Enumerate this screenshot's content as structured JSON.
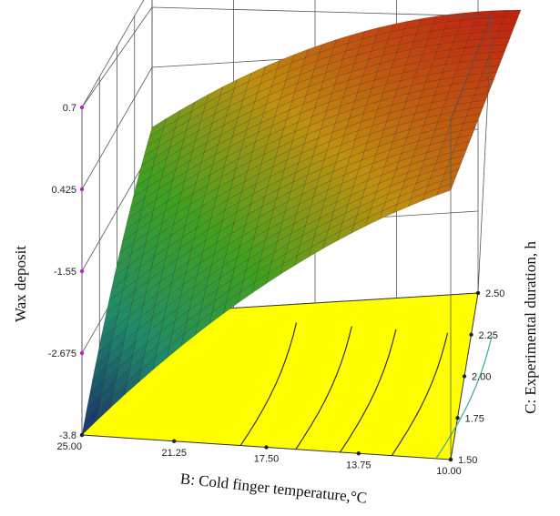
{
  "chart_data": {
    "type": "surface",
    "title": "",
    "zlabel": "Wax deposit",
    "xlabel": "B: Cold finger  temperature,°C",
    "ylabel": "C: Experimental  duration,  h",
    "x_ticks": [
      "25.00",
      "21.25",
      "17.50",
      "13.75",
      "10.00"
    ],
    "y_ticks": [
      "1.50",
      "1.75",
      "2.00",
      "2.25",
      "2.50"
    ],
    "z_ticks": [
      "0.7",
      "0.425",
      "-1.55",
      "-2.675",
      "-3.8"
    ],
    "xlim": [
      25.0,
      10.0
    ],
    "ylim": [
      1.5,
      2.5
    ],
    "zlim": [
      -3.8,
      0.7
    ],
    "surface_corners": [
      {
        "x": 25.0,
        "y": 1.5,
        "z": -3.8
      },
      {
        "x": 10.0,
        "y": 1.5,
        "z": -0.1
      },
      {
        "x": 25.0,
        "y": 2.5,
        "z": -1.25
      },
      {
        "x": 10.0,
        "y": 2.5,
        "z": 0.7
      }
    ],
    "floor_color": "#ffff00",
    "contour_colors": [
      "#333333",
      "#333333",
      "#333333",
      "#333333",
      "#3fa8a0"
    ],
    "surface_colors": [
      "#1a2d6a",
      "#1f8a6a",
      "#3fa020",
      "#c09010",
      "#c02010"
    ]
  }
}
